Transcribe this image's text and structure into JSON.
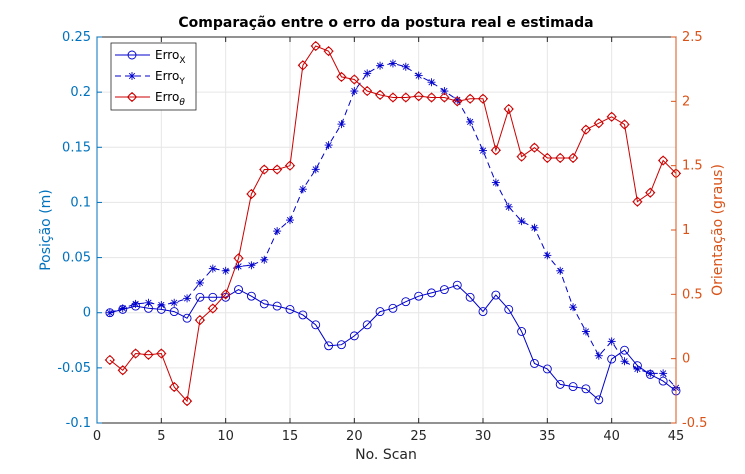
{
  "chart_data": {
    "type": "line",
    "title": "Comparação entre o erro da postura real e estimada",
    "xlabel": "No. Scan",
    "ylabel_left": "Posição (m)",
    "ylabel_right": "Orientação (graus)",
    "xlim": [
      0,
      45
    ],
    "ylim_left": [
      -0.1,
      0.25
    ],
    "ylim_right": [
      -0.5,
      2.5
    ],
    "x_ticks": [
      "0",
      "5",
      "10",
      "15",
      "20",
      "25",
      "30",
      "35",
      "40",
      "45"
    ],
    "y_left_ticks": [
      "-0.1",
      "-0.05",
      "0",
      "0.05",
      "0.1",
      "0.15",
      "0.2",
      "0.25"
    ],
    "y_right_ticks": [
      "-0.5",
      "0",
      "0.5",
      "1",
      "1.5",
      "2",
      "2.5"
    ],
    "grid": true,
    "legend_position": "top-left",
    "colors": {
      "left_axis": "#0072BD",
      "right_axis": "#D95319",
      "series_blue": "#0000CC",
      "series_red": "#CC0000"
    },
    "x": [
      1,
      2,
      3,
      4,
      5,
      6,
      7,
      8,
      9,
      10,
      11,
      12,
      13,
      14,
      15,
      16,
      17,
      18,
      19,
      20,
      21,
      22,
      23,
      24,
      25,
      26,
      27,
      28,
      29,
      30,
      31,
      32,
      33,
      34,
      35,
      36,
      37,
      38,
      39,
      40,
      41,
      42,
      43,
      44,
      45
    ],
    "series": [
      {
        "name": "Erro",
        "subscript": "X",
        "axis": "left",
        "marker": "circle",
        "linestyle": "solid",
        "values": [
          0.0,
          0.003,
          0.006,
          0.004,
          0.003,
          0.001,
          -0.005,
          0.014,
          0.014,
          0.014,
          0.021,
          0.015,
          0.008,
          0.006,
          0.003,
          -0.002,
          -0.011,
          -0.03,
          -0.029,
          -0.021,
          -0.011,
          0.001,
          0.004,
          0.01,
          0.015,
          0.018,
          0.021,
          0.025,
          0.014,
          0.001,
          0.016,
          0.003,
          -0.017,
          -0.046,
          -0.051,
          -0.065,
          -0.067,
          -0.069,
          -0.079,
          -0.042,
          -0.034,
          -0.048,
          -0.056,
          -0.062,
          -0.071
        ]
      },
      {
        "name": "Erro",
        "subscript": "Y",
        "axis": "left",
        "marker": "asterisk",
        "linestyle": "dashed",
        "values": [
          0.0,
          0.004,
          0.008,
          0.009,
          0.007,
          0.009,
          0.013,
          0.027,
          0.04,
          0.038,
          0.042,
          0.043,
          0.048,
          0.074,
          0.084,
          0.112,
          0.13,
          0.152,
          0.171,
          0.201,
          0.217,
          0.224,
          0.226,
          0.223,
          0.215,
          0.209,
          0.201,
          0.193,
          0.173,
          0.147,
          0.118,
          0.096,
          0.083,
          0.077,
          0.052,
          0.038,
          0.005,
          -0.017,
          -0.039,
          -0.026,
          -0.044,
          -0.051,
          -0.055,
          -0.055,
          -0.068
        ]
      },
      {
        "name": "Erro",
        "subscript": "θ",
        "axis": "right",
        "marker": "diamond",
        "linestyle": "solid",
        "values": [
          -0.01,
          -0.09,
          0.04,
          0.03,
          0.04,
          -0.22,
          -0.33,
          0.3,
          0.39,
          0.5,
          0.78,
          1.28,
          1.47,
          1.47,
          1.5,
          2.28,
          2.43,
          2.39,
          2.19,
          2.17,
          2.08,
          2.05,
          2.03,
          2.03,
          2.04,
          2.03,
          2.03,
          2.0,
          2.02,
          2.02,
          1.62,
          1.94,
          1.57,
          1.64,
          1.56,
          1.56,
          1.56,
          1.78,
          1.83,
          1.88,
          1.82,
          1.22,
          1.29,
          1.54,
          1.44
        ]
      }
    ]
  }
}
